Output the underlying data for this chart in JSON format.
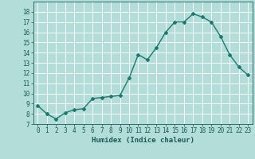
{
  "x": [
    0,
    1,
    2,
    3,
    4,
    5,
    6,
    7,
    8,
    9,
    10,
    11,
    12,
    13,
    14,
    15,
    16,
    17,
    18,
    19,
    20,
    21,
    22,
    23
  ],
  "y": [
    8.8,
    8.0,
    7.5,
    8.1,
    8.4,
    8.5,
    9.5,
    9.6,
    9.7,
    9.8,
    11.5,
    13.8,
    13.3,
    14.5,
    16.0,
    17.0,
    17.0,
    17.8,
    17.5,
    17.0,
    15.6,
    13.8,
    12.6,
    11.8
  ],
  "line_color": "#1a7a6e",
  "marker": "D",
  "marker_size": 2.0,
  "bg_color": "#b2ddd8",
  "grid_color": "#ffffff",
  "xlabel": "Humidex (Indice chaleur)",
  "xlim": [
    -0.5,
    23.5
  ],
  "ylim": [
    7,
    19
  ],
  "yticks": [
    7,
    8,
    9,
    10,
    11,
    12,
    13,
    14,
    15,
    16,
    17,
    18
  ],
  "xticks": [
    0,
    1,
    2,
    3,
    4,
    5,
    6,
    7,
    8,
    9,
    10,
    11,
    12,
    13,
    14,
    15,
    16,
    17,
    18,
    19,
    20,
    21,
    22,
    23
  ],
  "font_color": "#1a5a55",
  "axis_label_fontsize": 6.5,
  "tick_fontsize": 5.5,
  "linewidth": 1.0
}
